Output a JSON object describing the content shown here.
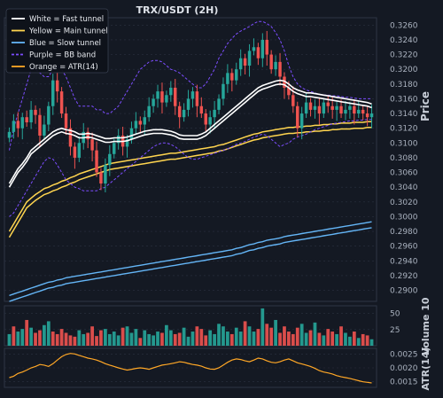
{
  "chart_data": {
    "type": "line",
    "title": "TRX/USDT (2H)",
    "colors": {
      "background": "#141923",
      "grid": "#2a3140",
      "text": "#aab2bf",
      "candle_up": "#26a69a",
      "candle_down": "#ef5350",
      "fast_tunnel": "#ffffff",
      "main_tunnel": "#ffd54f",
      "slow_tunnel": "#64b5f6",
      "bb_band": "#7c4dff",
      "atr": "#ffa726"
    },
    "legend": {
      "position": "top-left",
      "items": [
        {
          "label": "White = Fast tunnel",
          "color": "#ffffff",
          "style": "solid"
        },
        {
          "label": "Yellow = Main tunnel",
          "color": "#ffd54f",
          "style": "solid"
        },
        {
          "label": "Blue = Slow tunnel",
          "color": "#64b5f6",
          "style": "solid"
        },
        {
          "label": "Purple = BB band",
          "color": "#7c4dff",
          "style": "dashed"
        },
        {
          "label": "Orange = ATR(14)",
          "color": "#ffa726",
          "style": "solid"
        }
      ]
    },
    "price_panel": {
      "ylabel": "Price",
      "ylim": [
        0.2885,
        0.327
      ],
      "yticks": [
        "0.2900",
        "0.2920",
        "0.2940",
        "0.2960",
        "0.2980",
        "0.3000",
        "0.3020",
        "0.3040",
        "0.3060",
        "0.3080",
        "0.3100",
        "0.3120",
        "0.3140",
        "0.3160",
        "0.3180",
        "0.3200",
        "0.3220",
        "0.3240",
        "0.3260"
      ],
      "close": [
        0.3115,
        0.313,
        0.312,
        0.3135,
        0.3128,
        0.3145,
        0.3138,
        0.311,
        0.3125,
        0.315,
        0.3185,
        0.317,
        0.314,
        0.312,
        0.3095,
        0.308,
        0.31,
        0.3115,
        0.3105,
        0.309,
        0.306,
        0.3045,
        0.307,
        0.3085,
        0.31,
        0.311,
        0.3095,
        0.3105,
        0.312,
        0.313,
        0.3125,
        0.3135,
        0.315,
        0.316,
        0.317,
        0.3155,
        0.3165,
        0.3175,
        0.315,
        0.3135,
        0.3145,
        0.316,
        0.317,
        0.315,
        0.314,
        0.3125,
        0.3135,
        0.3145,
        0.316,
        0.318,
        0.3195,
        0.3185,
        0.32,
        0.3215,
        0.3205,
        0.3225,
        0.323,
        0.3215,
        0.324,
        0.322,
        0.32,
        0.321,
        0.319,
        0.3175,
        0.3165,
        0.315,
        0.312,
        0.314,
        0.3155,
        0.3145,
        0.315,
        0.314,
        0.3155,
        0.315,
        0.3145,
        0.315,
        0.314,
        0.3145,
        0.315,
        0.314,
        0.3145,
        0.314,
        0.3135,
        0.314
      ],
      "fast_tunnel": [
        0.3045,
        0.3055,
        0.3065,
        0.3072,
        0.308,
        0.309,
        0.3095,
        0.31,
        0.3105,
        0.311,
        0.3115,
        0.3118,
        0.312,
        0.3118,
        0.3117,
        0.3115,
        0.3112,
        0.3112,
        0.3113,
        0.3112,
        0.311,
        0.3108,
        0.3106,
        0.3106,
        0.3107,
        0.3107,
        0.3107,
        0.3108,
        0.311,
        0.3112,
        0.3114,
        0.3116,
        0.3117,
        0.3118,
        0.3118,
        0.3118,
        0.3117,
        0.3116,
        0.3114,
        0.3111,
        0.311,
        0.311,
        0.311,
        0.311,
        0.3112,
        0.3115,
        0.312,
        0.3125,
        0.313,
        0.3135,
        0.314,
        0.3145,
        0.315,
        0.3155,
        0.316,
        0.3165,
        0.317,
        0.3175,
        0.3178,
        0.318,
        0.3182,
        0.3184,
        0.3185,
        0.3184,
        0.318,
        0.3175,
        0.3172,
        0.317,
        0.3168,
        0.3168,
        0.3167,
        0.3166,
        0.3165,
        0.3164,
        0.3163,
        0.3162,
        0.3161,
        0.316,
        0.3159,
        0.3158,
        0.3157,
        0.3156,
        0.3155,
        0.3153
      ],
      "main_tunnel": [
        0.298,
        0.299,
        0.3,
        0.301,
        0.302,
        0.3025,
        0.303,
        0.3034,
        0.3038,
        0.304,
        0.3043,
        0.3045,
        0.3048,
        0.305,
        0.3053,
        0.3055,
        0.3058,
        0.306,
        0.3062,
        0.3064,
        0.3066,
        0.3068,
        0.307,
        0.3072,
        0.3073,
        0.3074,
        0.3075,
        0.3076,
        0.3077,
        0.3078,
        0.3079,
        0.308,
        0.3081,
        0.3082,
        0.3083,
        0.3084,
        0.3085,
        0.3086,
        0.3086,
        0.3087,
        0.3088,
        0.3089,
        0.309,
        0.3091,
        0.3092,
        0.3093,
        0.3094,
        0.3095,
        0.3097,
        0.3098,
        0.31,
        0.3102,
        0.3104,
        0.3106,
        0.3108,
        0.311,
        0.3112,
        0.3113,
        0.3115,
        0.3116,
        0.3117,
        0.3118,
        0.3119,
        0.312,
        0.3121,
        0.3121,
        0.3122,
        0.3122,
        0.3123,
        0.3123,
        0.3124,
        0.3124,
        0.3125,
        0.3125,
        0.3126,
        0.3126,
        0.3127,
        0.3127,
        0.3127,
        0.3128,
        0.3128,
        0.3128,
        0.3129,
        0.3129
      ],
      "slow_tunnel": [
        0.2893,
        0.2895,
        0.2897,
        0.2899,
        0.2901,
        0.2903,
        0.2905,
        0.2907,
        0.2909,
        0.2911,
        0.2912,
        0.2914,
        0.2915,
        0.2917,
        0.2918,
        0.2919,
        0.292,
        0.2921,
        0.2922,
        0.2923,
        0.2924,
        0.2925,
        0.2926,
        0.2927,
        0.2928,
        0.2929,
        0.293,
        0.2931,
        0.2932,
        0.2933,
        0.2934,
        0.2935,
        0.2936,
        0.2937,
        0.2938,
        0.2939,
        0.294,
        0.2941,
        0.2942,
        0.2943,
        0.2944,
        0.2945,
        0.2946,
        0.2947,
        0.2948,
        0.2949,
        0.295,
        0.2951,
        0.2952,
        0.2953,
        0.2954,
        0.2955,
        0.2957,
        0.2958,
        0.296,
        0.2962,
        0.2963,
        0.2965,
        0.2966,
        0.2968,
        0.2969,
        0.297,
        0.2971,
        0.2973,
        0.2974,
        0.2975,
        0.2976,
        0.2977,
        0.2978,
        0.2979,
        0.298,
        0.2981,
        0.2982,
        0.2983,
        0.2984,
        0.2985,
        0.2986,
        0.2987,
        0.2988,
        0.2989,
        0.299,
        0.2991,
        0.2992,
        0.2993
      ],
      "bb_upper": [
        0.309,
        0.312,
        0.314,
        0.316,
        0.318,
        0.32,
        0.32,
        0.3195,
        0.319,
        0.319,
        0.32,
        0.3205,
        0.32,
        0.319,
        0.3175,
        0.316,
        0.315,
        0.315,
        0.315,
        0.315,
        0.3145,
        0.3145,
        0.314,
        0.314,
        0.3145,
        0.315,
        0.316,
        0.317,
        0.318,
        0.319,
        0.32,
        0.3205,
        0.321,
        0.3212,
        0.3212,
        0.321,
        0.3205,
        0.32,
        0.3198,
        0.3195,
        0.319,
        0.3185,
        0.318,
        0.3175,
        0.3175,
        0.318,
        0.319,
        0.32,
        0.3215,
        0.3225,
        0.3235,
        0.3242,
        0.3248,
        0.3252,
        0.3255,
        0.3258,
        0.3262,
        0.3265,
        0.3265,
        0.3262,
        0.3258,
        0.325,
        0.324,
        0.3225,
        0.3205,
        0.319,
        0.318,
        0.3175,
        0.3172,
        0.317,
        0.3168,
        0.3166,
        0.3165,
        0.3165,
        0.3164,
        0.3164,
        0.3163,
        0.3162,
        0.3162,
        0.3161,
        0.316,
        0.316,
        0.316,
        0.316
      ],
      "bb_lower": [
        0.3,
        0.3005,
        0.3015,
        0.3025,
        0.3035,
        0.3045,
        0.3055,
        0.3065,
        0.3075,
        0.308,
        0.3078,
        0.307,
        0.306,
        0.305,
        0.3045,
        0.304,
        0.3038,
        0.3035,
        0.3035,
        0.3035,
        0.3035,
        0.3038,
        0.304,
        0.3045,
        0.305,
        0.3055,
        0.306,
        0.3065,
        0.307,
        0.3075,
        0.308,
        0.3085,
        0.309,
        0.3095,
        0.3098,
        0.31,
        0.31,
        0.3098,
        0.3095,
        0.309,
        0.3085,
        0.308,
        0.3078,
        0.3078,
        0.308,
        0.3082,
        0.3084,
        0.3086,
        0.3088,
        0.309,
        0.3092,
        0.3095,
        0.3098,
        0.31,
        0.3102,
        0.3105,
        0.3108,
        0.311,
        0.3112,
        0.311,
        0.3105,
        0.31,
        0.3095,
        0.3098,
        0.31,
        0.3105,
        0.3108,
        0.311,
        0.3112,
        0.3115,
        0.3118,
        0.312,
        0.3122,
        0.3124,
        0.3126,
        0.3127,
        0.3128,
        0.3129,
        0.313,
        0.313,
        0.3131,
        0.3131,
        0.3132,
        0.3132
      ]
    },
    "volume_panel": {
      "ylabel": "Volume 10",
      "ylim": [
        0,
        62
      ],
      "yticks": [
        "25",
        "50"
      ],
      "values": [
        18,
        30,
        22,
        26,
        40,
        28,
        20,
        24,
        32,
        38,
        22,
        18,
        26,
        20,
        16,
        14,
        24,
        18,
        20,
        30,
        15,
        24,
        26,
        18,
        22,
        16,
        28,
        30,
        20,
        26,
        12,
        24,
        18,
        16,
        22,
        20,
        32,
        24,
        18,
        20,
        28,
        14,
        22,
        30,
        26,
        16,
        24,
        18,
        34,
        30,
        22,
        18,
        28,
        22,
        38,
        30,
        22,
        26,
        58,
        34,
        28,
        40,
        20,
        30,
        22,
        18,
        28,
        34,
        20,
        24,
        36,
        20,
        16,
        26,
        22,
        18,
        30,
        20,
        14,
        22,
        12,
        18,
        16,
        10
      ],
      "down_flags": [
        0,
        1,
        0,
        0,
        1,
        0,
        1,
        1,
        0,
        0,
        1,
        1,
        1,
        1,
        1,
        1,
        0,
        0,
        1,
        1,
        1,
        1,
        0,
        0,
        0,
        0,
        1,
        0,
        0,
        0,
        1,
        0,
        0,
        0,
        0,
        1,
        0,
        0,
        1,
        1,
        0,
        0,
        0,
        1,
        1,
        1,
        0,
        0,
        0,
        0,
        0,
        1,
        0,
        0,
        1,
        0,
        0,
        1,
        0,
        1,
        1,
        0,
        1,
        1,
        1,
        1,
        1,
        0,
        0,
        1,
        0,
        1,
        0,
        1,
        1,
        0,
        1,
        0,
        0,
        1,
        0,
        1,
        1,
        0
      ]
    },
    "atr_panel": {
      "ylabel": "ATR(14)",
      "ylim": [
        0.0013,
        0.0027
      ],
      "yticks": [
        "0.0015",
        "0.0020",
        "0.0025"
      ],
      "values": [
        0.00165,
        0.0017,
        0.0018,
        0.00185,
        0.00192,
        0.002,
        0.00205,
        0.00212,
        0.0021,
        0.00205,
        0.00215,
        0.00228,
        0.0024,
        0.00248,
        0.00252,
        0.0025,
        0.00245,
        0.0024,
        0.00235,
        0.00232,
        0.00228,
        0.00222,
        0.00215,
        0.0021,
        0.00205,
        0.002,
        0.00196,
        0.00192,
        0.00195,
        0.00198,
        0.002,
        0.00198,
        0.00195,
        0.002,
        0.00205,
        0.0021,
        0.00212,
        0.00215,
        0.00218,
        0.00222,
        0.0022,
        0.00216,
        0.00212,
        0.0021,
        0.00206,
        0.002,
        0.00196,
        0.00195,
        0.002,
        0.0021,
        0.0022,
        0.00228,
        0.00232,
        0.0023,
        0.00225,
        0.00222,
        0.00228,
        0.00235,
        0.00232,
        0.00225,
        0.0022,
        0.00218,
        0.00222,
        0.00228,
        0.00232,
        0.00225,
        0.00218,
        0.00214,
        0.0021,
        0.00205,
        0.00198,
        0.0019,
        0.00185,
        0.00182,
        0.00178,
        0.00172,
        0.00168,
        0.00165,
        0.00162,
        0.00158,
        0.00154,
        0.0015,
        0.00148,
        0.00146
      ]
    }
  }
}
